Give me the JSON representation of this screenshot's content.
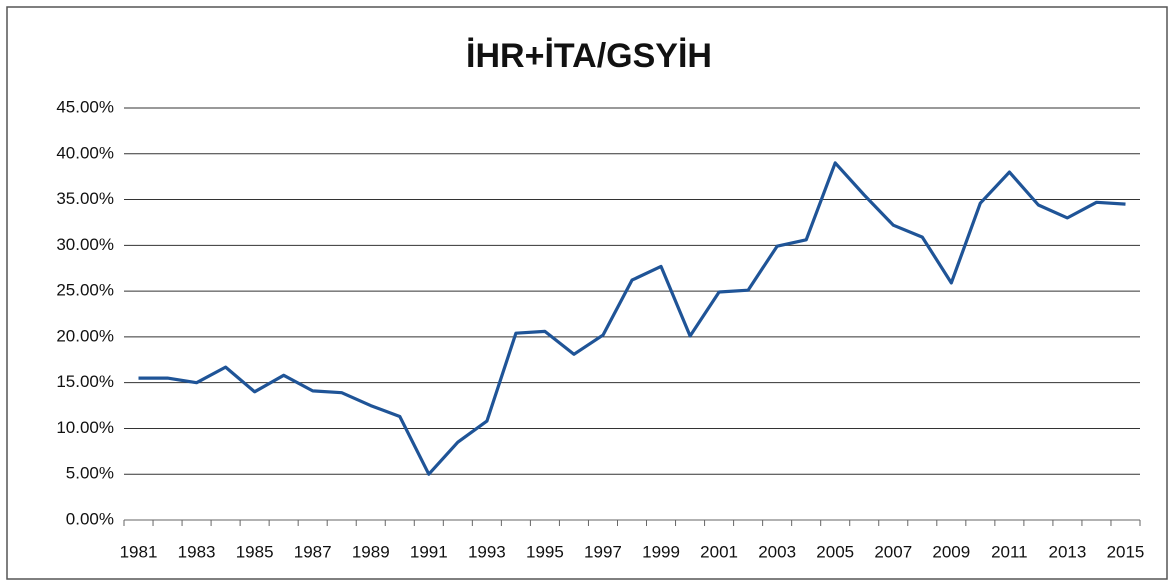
{
  "chart_data": {
    "type": "line",
    "title": "İHR+İTA/GSYİH",
    "categories": [
      "1981",
      null,
      "1983",
      null,
      "1985",
      null,
      "1987",
      null,
      "1989",
      null,
      "1991",
      null,
      "1993",
      null,
      "1995",
      null,
      "1997",
      null,
      "1999",
      null,
      "2001",
      null,
      "2003",
      null,
      "2005",
      null,
      "2007",
      null,
      "2009",
      null,
      "2011",
      null,
      "2013",
      null,
      "2015"
    ],
    "series": [
      {
        "name": "İHR+İTA/GSYİH",
        "color": "#1f5497",
        "values": [
          15.5,
          15.5,
          15.0,
          16.7,
          14.0,
          15.8,
          14.1,
          13.9,
          12.5,
          11.3,
          5.0,
          8.5,
          10.8,
          20.4,
          20.6,
          18.1,
          20.2,
          26.2,
          27.7,
          20.1,
          24.9,
          25.1,
          29.9,
          30.6,
          39.0,
          35.5,
          32.2,
          30.9,
          25.9,
          34.6,
          38.0,
          34.4,
          33.0,
          34.7,
          34.5
        ]
      }
    ],
    "ylim": [
      0,
      45
    ],
    "yticks": [
      {
        "value": 0,
        "label": "0.00%"
      },
      {
        "value": 5,
        "label": "5.00%"
      },
      {
        "value": 10,
        "label": "10.00%"
      },
      {
        "value": 15,
        "label": "15.00%"
      },
      {
        "value": 20,
        "label": "20.00%"
      },
      {
        "value": 25,
        "label": "25.00%"
      },
      {
        "value": 30,
        "label": "30.00%"
      },
      {
        "value": 35,
        "label": "35.00%"
      },
      {
        "value": 40,
        "label": "40.00%"
      },
      {
        "value": 45,
        "label": "45.00%"
      }
    ],
    "grid": true
  }
}
